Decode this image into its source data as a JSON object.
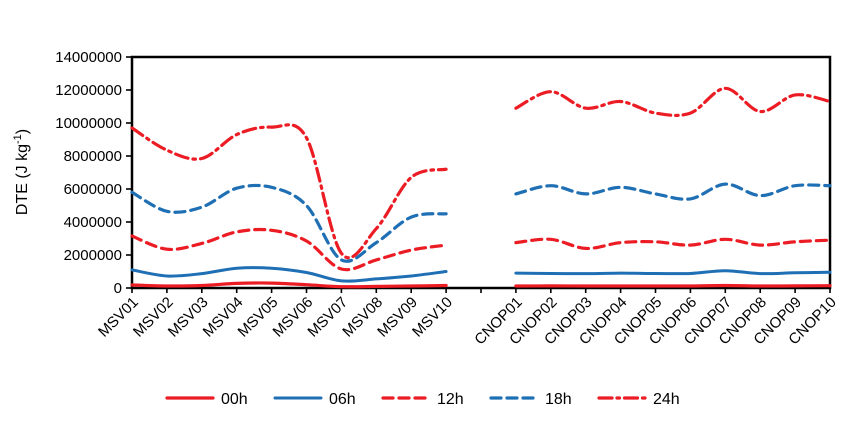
{
  "figure": {
    "ylabel_prefix": "DTE (J kg",
    "ylabel_sup": "-1",
    "ylabel_suffix": ")"
  },
  "chart_data": {
    "type": "line",
    "title": "",
    "xlabel": "",
    "ylabel": "DTE (J kg-1)",
    "ylim": [
      0,
      14000000
    ],
    "yticks": [
      0,
      2000000,
      4000000,
      6000000,
      8000000,
      10000000,
      12000000,
      14000000
    ],
    "grid": false,
    "legend_position": "bottom",
    "line_shape": "smoothed",
    "colors": {
      "red": "#ec1c24",
      "blue": "#1f6fb5",
      "axis": "#000000"
    },
    "categories": [
      "MSV01",
      "MSV02",
      "MSV03",
      "MSV04",
      "MSV05",
      "MSV06",
      "MSV07",
      "MSV08",
      "MSV09",
      "MSV10",
      "",
      "CNOP01",
      "CNOP02",
      "CNOP03",
      "CNOP04",
      "CNOP05",
      "CNOP06",
      "CNOP07",
      "CNOP08",
      "CNOP09",
      "CNOP10"
    ],
    "series": [
      {
        "name": "00h",
        "color": "#ec1c24",
        "style": "solid",
        "width": 3.2,
        "values": [
          180000,
          120000,
          150000,
          280000,
          300000,
          200000,
          80000,
          100000,
          120000,
          150000,
          null,
          120000,
          130000,
          120000,
          120000,
          120000,
          120000,
          150000,
          120000,
          130000,
          140000
        ]
      },
      {
        "name": "06h",
        "color": "#1f6fb5",
        "style": "solid",
        "width": 3,
        "values": [
          1100000,
          730000,
          870000,
          1200000,
          1200000,
          940000,
          430000,
          550000,
          730000,
          1000000,
          null,
          900000,
          880000,
          870000,
          900000,
          880000,
          880000,
          1050000,
          870000,
          920000,
          950000
        ]
      },
      {
        "name": "12h",
        "color": "#ec1c24",
        "style": "dashed",
        "width": 3.2,
        "values": [
          3150000,
          2350000,
          2700000,
          3400000,
          3500000,
          2850000,
          1150000,
          1700000,
          2300000,
          2600000,
          null,
          2750000,
          2950000,
          2400000,
          2750000,
          2800000,
          2600000,
          2950000,
          2600000,
          2800000,
          2900000
        ]
      },
      {
        "name": "18h",
        "color": "#1f6fb5",
        "style": "dashed",
        "width": 3.2,
        "values": [
          5800000,
          4650000,
          4900000,
          6050000,
          6100000,
          5000000,
          1700000,
          2750000,
          4300000,
          4500000,
          null,
          5700000,
          6200000,
          5700000,
          6100000,
          5700000,
          5400000,
          6300000,
          5600000,
          6200000,
          6200000
        ]
      },
      {
        "name": "24h",
        "color": "#ec1c24",
        "style": "dashdot",
        "width": 3.2,
        "values": [
          9700000,
          8350000,
          7850000,
          9300000,
          9750000,
          9100000,
          2100000,
          3600000,
          6700000,
          7200000,
          null,
          10900000,
          11900000,
          10900000,
          11300000,
          10600000,
          10600000,
          12100000,
          10700000,
          11700000,
          11300000
        ]
      }
    ]
  }
}
